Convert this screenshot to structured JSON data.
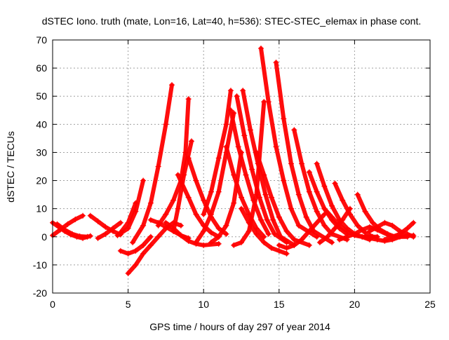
{
  "chart_data": {
    "type": "line",
    "title": "dSTEC Iono. truth (mate, Lon=16, Lat=40, h=536): STEC-STEC_elemax in phase cont.",
    "xlabel": "GPS time / hours of day 297 of year 2014",
    "ylabel": "dSTEC  / TECUs",
    "xlim": [
      0,
      25
    ],
    "ylim": [
      -20,
      70
    ],
    "x_ticks": [
      0,
      5,
      10,
      15,
      20,
      25
    ],
    "y_ticks": [
      -20,
      -10,
      0,
      10,
      20,
      30,
      40,
      50,
      60,
      70
    ],
    "grid": true,
    "legend": "none",
    "marker": "plus",
    "color": "#ff0000",
    "series": [
      {
        "x": [
          0,
          0.5,
          1.0,
          1.5,
          2.0
        ],
        "y": [
          0.5,
          2.5,
          4.5,
          6.2,
          7.5
        ]
      },
      {
        "x": [
          0,
          0.4,
          0.8,
          1.2,
          1.6,
          2.0,
          2.5
        ],
        "y": [
          5,
          3.5,
          2,
          0.8,
          0,
          -0.5,
          0.3
        ]
      },
      {
        "x": [
          0.3,
          0.8,
          1.3,
          1.8,
          2.3
        ],
        "y": [
          4.5,
          2.5,
          1,
          0.2,
          0
        ]
      },
      {
        "x": [
          2.5,
          3.0,
          3.5,
          4.0,
          4.5
        ],
        "y": [
          7.5,
          5.5,
          3.5,
          2,
          0.8
        ]
      },
      {
        "x": [
          3.0,
          3.5,
          4.0,
          4.5
        ],
        "y": [
          -0.5,
          1,
          3,
          5
        ]
      },
      {
        "x": [
          4.3,
          5.0,
          5.5,
          6.0
        ],
        "y": [
          0.5,
          3,
          9,
          20
        ]
      },
      {
        "x": [
          4.5,
          5.0,
          5.5
        ],
        "y": [
          1.5,
          5,
          12
        ]
      },
      {
        "x": [
          4.5,
          5.0,
          5.5,
          6.0,
          6.5
        ],
        "y": [
          -5,
          -6,
          -5,
          -3,
          0
        ]
      },
      {
        "x": [
          5.0,
          5.5,
          6.0,
          6.5,
          7.0,
          7.5,
          8.0,
          8.5
        ],
        "y": [
          -13,
          -10,
          -6,
          -3,
          0,
          3,
          5,
          4
        ]
      },
      {
        "x": [
          5.3,
          6.0,
          6.5,
          7.0,
          7.5,
          7.9
        ],
        "y": [
          -2,
          4,
          12,
          25,
          40,
          54
        ]
      },
      {
        "x": [
          6.5,
          7.0,
          7.5,
          8.0,
          8.5,
          9.0
        ],
        "y": [
          6,
          5,
          3.5,
          2,
          0.5,
          -0.5
        ]
      },
      {
        "x": [
          7.0,
          7.5,
          8.0,
          8.5,
          8.8,
          9.0
        ],
        "y": [
          4,
          8,
          13,
          20,
          30,
          49
        ]
      },
      {
        "x": [
          7.5,
          8.0,
          8.5,
          9.0,
          9.5,
          10.0,
          11.0
        ],
        "y": [
          5,
          3,
          0.5,
          -1.5,
          -2.5,
          -3,
          -2.5
        ]
      },
      {
        "x": [
          8.0,
          8.3,
          8.7,
          9.2
        ],
        "y": [
          2,
          10,
          22,
          34
        ]
      },
      {
        "x": [
          8.3,
          9.0,
          9.5,
          10.0,
          10.5,
          11.0
        ],
        "y": [
          22,
          14,
          8,
          4,
          1.5,
          0
        ]
      },
      {
        "x": [
          9.0,
          9.5,
          10.0,
          10.5,
          11.0,
          11.5
        ],
        "y": [
          28,
          20,
          13,
          7,
          3,
          1
        ]
      },
      {
        "x": [
          9.5,
          10.0,
          10.5,
          11.0,
          11.5,
          12.0
        ],
        "y": [
          -2,
          2,
          8,
          16,
          30,
          44
        ]
      },
      {
        "x": [
          10.0,
          10.5,
          11.0,
          11.5,
          11.8
        ],
        "y": [
          8,
          16,
          28,
          40,
          52
        ]
      },
      {
        "x": [
          10.5,
          11.0,
          11.5,
          12.0,
          12.5
        ],
        "y": [
          -2,
          0,
          4,
          12,
          30
        ]
      },
      {
        "x": [
          11.5,
          12.0,
          12.5,
          13.0,
          13.5,
          14.0
        ],
        "y": [
          32,
          22,
          14,
          8,
          3,
          0
        ]
      },
      {
        "x": [
          11.8,
          12.3,
          12.8,
          13.3,
          13.8,
          14.3
        ],
        "y": [
          45,
          32,
          22,
          13,
          6,
          1
        ]
      },
      {
        "x": [
          12.2,
          12.7,
          13.2,
          13.7,
          14.2,
          14.7,
          15.5
        ],
        "y": [
          50,
          36,
          24,
          14,
          6,
          1,
          -2
        ]
      },
      {
        "x": [
          12.6,
          13.1,
          13.6,
          14.1,
          14.6,
          15.1,
          16.0
        ],
        "y": [
          52,
          38,
          26,
          15,
          6,
          0,
          -3
        ]
      },
      {
        "x": [
          12.0,
          12.5,
          13.0,
          13.5,
          14.0
        ],
        "y": [
          -3,
          -2,
          2,
          15,
          48
        ]
      },
      {
        "x": [
          12.5,
          13.0,
          13.5,
          14.0,
          14.5,
          15.0,
          15.5
        ],
        "y": [
          10,
          5,
          1,
          -2,
          -4,
          -5,
          -6
        ]
      },
      {
        "x": [
          13.5,
          14.0,
          14.5,
          15.0,
          15.5,
          16.0,
          17.0
        ],
        "y": [
          30,
          22,
          14,
          7,
          2,
          -1,
          -3
        ]
      },
      {
        "x": [
          13.8,
          14.3,
          14.8,
          15.3,
          15.8,
          16.3,
          17.5
        ],
        "y": [
          67,
          48,
          32,
          20,
          10,
          4,
          0
        ]
      },
      {
        "x": [
          14.8,
          15.3,
          15.8,
          16.3,
          16.8,
          17.3,
          18.5
        ],
        "y": [
          62,
          42,
          26,
          15,
          7,
          2,
          -2
        ]
      },
      {
        "x": [
          15.0,
          15.5,
          16.0,
          16.5,
          17.0,
          18.0
        ],
        "y": [
          -3,
          -4,
          -3,
          -1,
          2,
          8
        ]
      },
      {
        "x": [
          16.0,
          16.5,
          17.0,
          17.5,
          18.0,
          18.5,
          19.5
        ],
        "y": [
          38,
          26,
          16,
          9,
          4,
          1,
          -1
        ]
      },
      {
        "x": [
          17.0,
          17.5,
          18.0,
          18.5,
          19.0,
          19.5
        ],
        "y": [
          23,
          16,
          10,
          6,
          3,
          1
        ]
      },
      {
        "x": [
          17.5,
          18.0,
          18.5,
          19.0,
          19.5,
          20.0,
          21.0
        ],
        "y": [
          26,
          18,
          11,
          6,
          3,
          1,
          -1
        ]
      },
      {
        "x": [
          17.7,
          18.2,
          18.7,
          19.2,
          19.7
        ],
        "y": [
          -2,
          0,
          3,
          6,
          10
        ]
      },
      {
        "x": [
          18.0,
          18.5,
          19.0,
          19.5,
          20.0,
          20.5,
          21.5
        ],
        "y": [
          10,
          7,
          4,
          2,
          0.5,
          0,
          0
        ]
      },
      {
        "x": [
          18.7,
          19.2,
          19.7,
          20.2,
          20.7,
          21.2
        ],
        "y": [
          19,
          13,
          8,
          4,
          1.5,
          0
        ]
      },
      {
        "x": [
          19.0,
          19.5,
          20.0,
          20.5,
          21.0,
          21.5,
          22.5
        ],
        "y": [
          -1,
          0,
          1,
          2.5,
          3.5,
          2.5,
          0
        ]
      },
      {
        "x": [
          20.2,
          20.7,
          21.2,
          21.7,
          22.2,
          22.7,
          23.5
        ],
        "y": [
          15,
          9,
          5,
          2.5,
          1,
          0,
          0
        ]
      },
      {
        "x": [
          20.5,
          21.0,
          21.5,
          22.0,
          22.5,
          23.0,
          23.9
        ],
        "y": [
          0,
          -0.5,
          -1,
          -1.5,
          -1,
          0,
          0.5
        ]
      },
      {
        "x": [
          21.0,
          21.5,
          22.0,
          22.5,
          23.0,
          23.5,
          23.9
        ],
        "y": [
          2,
          3.5,
          5,
          4,
          2,
          1,
          0
        ]
      },
      {
        "x": [
          22.0,
          22.5,
          23.0,
          23.5,
          23.9
        ],
        "y": [
          -1,
          0,
          1,
          3,
          5
        ]
      }
    ]
  }
}
